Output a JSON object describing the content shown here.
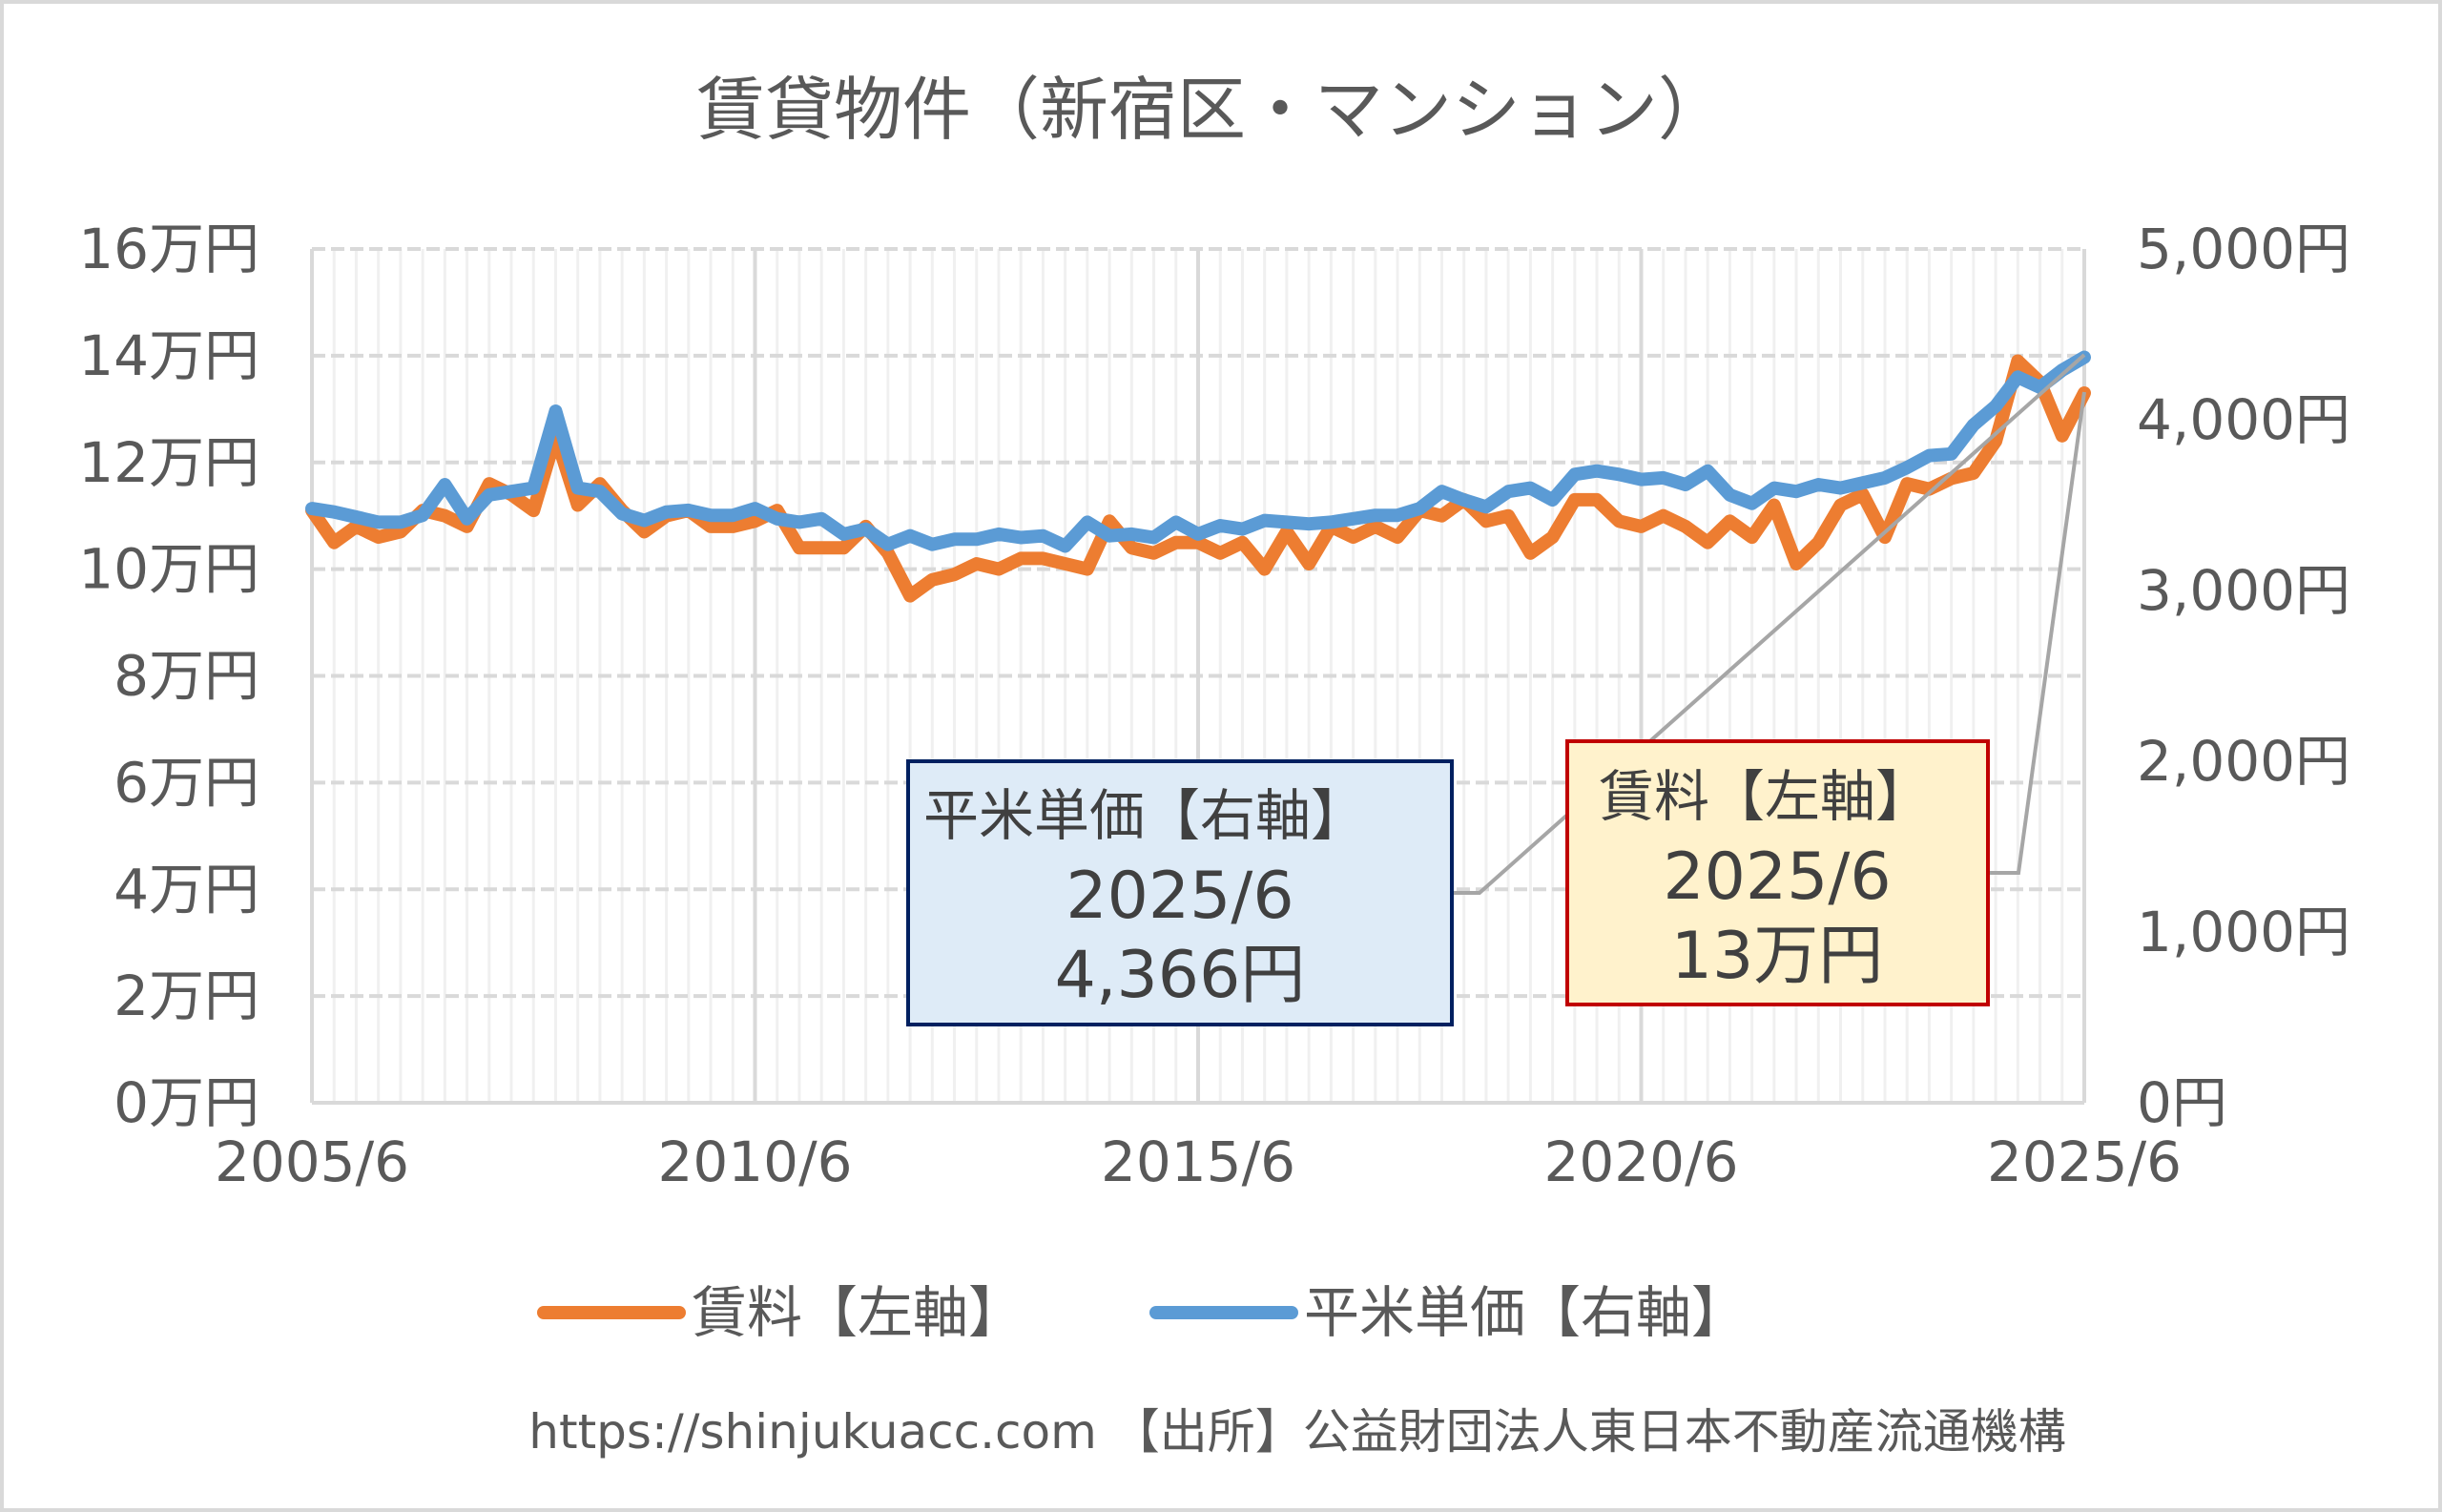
{
  "chart_data": {
    "type": "line",
    "title": "賃貸物件（新宿区・マンション）",
    "x_start": "2005/6",
    "x_end": "2025/6",
    "x_frequency": "quarterly",
    "x_tick_labels": [
      "2005/6",
      "2010/6",
      "2015/6",
      "2020/6",
      "2025/6"
    ],
    "left_axis": {
      "range": [
        0,
        16
      ],
      "unit": "万円",
      "tick_labels": [
        "0万円",
        "2万円",
        "4万円",
        "6万円",
        "8万円",
        "10万円",
        "12万円",
        "14万円",
        "16万円"
      ]
    },
    "right_axis": {
      "range": [
        0,
        5000
      ],
      "unit": "円",
      "tick_labels": [
        "0円",
        "1,000円",
        "2,000円",
        "3,000円",
        "4,000円",
        "5,000円"
      ]
    },
    "grid": true,
    "legend_position": "bottom",
    "series": [
      {
        "name": "賃料【左軸】",
        "axis": "left",
        "color": "#ED7D31",
        "values": [
          11.1,
          10.5,
          10.8,
          10.6,
          10.7,
          11.1,
          11.0,
          10.8,
          11.6,
          11.4,
          11.1,
          12.5,
          11.2,
          11.6,
          11.1,
          10.7,
          11.0,
          11.1,
          10.8,
          10.8,
          10.9,
          11.1,
          10.4,
          10.4,
          10.4,
          10.8,
          10.3,
          9.5,
          9.8,
          9.9,
          10.1,
          10.0,
          10.2,
          10.2,
          10.1,
          10.0,
          10.9,
          10.4,
          10.3,
          10.5,
          10.5,
          10.3,
          10.5,
          10.0,
          10.7,
          10.1,
          10.8,
          10.6,
          10.8,
          10.6,
          11.1,
          11.0,
          11.3,
          10.9,
          11.0,
          10.3,
          10.6,
          11.3,
          11.3,
          10.9,
          10.8,
          11.0,
          10.8,
          10.5,
          10.9,
          10.6,
          11.2,
          10.1,
          10.5,
          11.2,
          11.4,
          10.6,
          11.6,
          11.5,
          11.7,
          11.8,
          12.4,
          13.9,
          13.5,
          12.5,
          13.3
        ]
      },
      {
        "name": "平米単価【右軸】",
        "axis": "right",
        "color": "#5B9BD5",
        "values": [
          3480,
          3460,
          3430,
          3400,
          3400,
          3440,
          3620,
          3420,
          3560,
          3580,
          3600,
          4050,
          3600,
          3580,
          3450,
          3410,
          3460,
          3470,
          3440,
          3440,
          3480,
          3420,
          3400,
          3420,
          3330,
          3360,
          3270,
          3320,
          3270,
          3300,
          3300,
          3330,
          3310,
          3320,
          3260,
          3400,
          3320,
          3330,
          3310,
          3400,
          3330,
          3380,
          3360,
          3410,
          3400,
          3390,
          3400,
          3420,
          3440,
          3440,
          3480,
          3580,
          3530,
          3490,
          3580,
          3600,
          3530,
          3680,
          3700,
          3680,
          3650,
          3660,
          3620,
          3700,
          3560,
          3510,
          3600,
          3580,
          3620,
          3600,
          3630,
          3660,
          3720,
          3790,
          3800,
          3970,
          4080,
          4250,
          4190,
          4290,
          4366
        ]
      }
    ],
    "annotations": [
      {
        "series": "平米単価【右軸】",
        "lines": [
          "平米単価【右軸】",
          "2025/6",
          "4,366円"
        ],
        "fill": "#DEEBF7",
        "border": "#002060"
      },
      {
        "series": "賃料【左軸】",
        "lines": [
          "賃料【左軸】",
          "2025/6",
          "13万円"
        ],
        "fill": "#FFF2CC",
        "border": "#C00000"
      }
    ],
    "footer": "https://shinjukuacc.com 【出所】公益財団法人東日本不動産流通機構"
  }
}
